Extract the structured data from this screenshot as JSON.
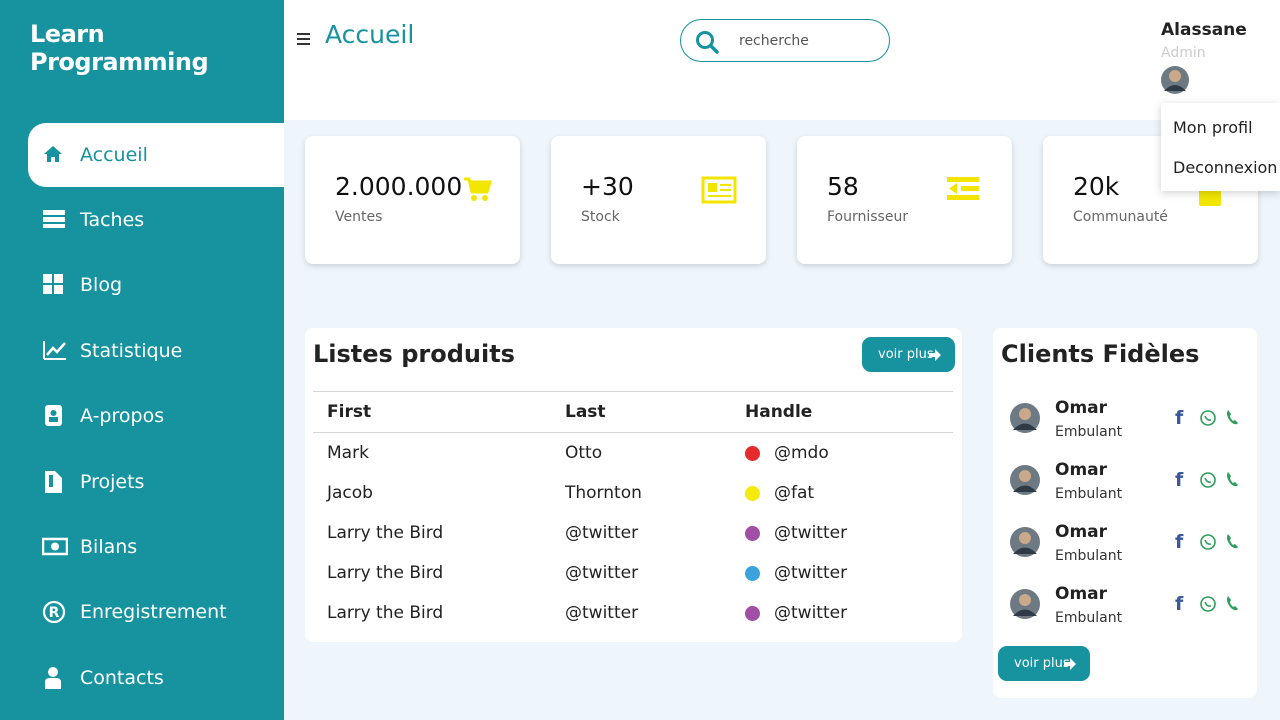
{
  "sidebar": {
    "brand": "Learn Programming",
    "menu": [
      "Accueil",
      "Taches",
      "Blog",
      "Statistique",
      "A-propos",
      "Projets",
      "Bilans",
      "Enregistrement",
      "Contacts"
    ]
  },
  "topbar": {
    "title": "Accueil",
    "search_placeholder": "recherche",
    "user": {
      "name": "Alassane",
      "role": "Admin"
    },
    "dropdown": [
      "Mon profil",
      "Deconnexion"
    ]
  },
  "cards": [
    {
      "value": "2.000.000",
      "label": "Ventes"
    },
    {
      "value": "+30",
      "label": "Stock"
    },
    {
      "value": "58",
      "label": "Fournisseur"
    },
    {
      "value": "20k",
      "label": "Communauté"
    }
  ],
  "products": {
    "title": "Listes produits",
    "button": "voir plus",
    "columns": [
      "First",
      "Last",
      "Handle"
    ],
    "rows": [
      {
        "first": "Mark",
        "last": "Otto",
        "handle": "@mdo",
        "color": "#e52b2b"
      },
      {
        "first": "Jacob",
        "last": "Thornton",
        "handle": "@fat",
        "color": "#f4ea0c"
      },
      {
        "first": "Larry the Bird",
        "last": "@twitter",
        "handle": "@twitter",
        "color": "#a14fa6"
      },
      {
        "first": "Larry the Bird",
        "last": "@twitter",
        "handle": "@twitter",
        "color": "#3aa3dc"
      },
      {
        "first": "Larry the Bird",
        "last": "@twitter",
        "handle": "@twitter",
        "color": "#a14fa6"
      }
    ]
  },
  "clients": {
    "title": "Clients Fidèles",
    "button": "voir plus",
    "items": [
      {
        "name": "Omar",
        "role": "Embulant"
      },
      {
        "name": "Omar",
        "role": "Embulant"
      },
      {
        "name": "Omar",
        "role": "Embulant"
      },
      {
        "name": "Omar",
        "role": "Embulant"
      }
    ]
  }
}
